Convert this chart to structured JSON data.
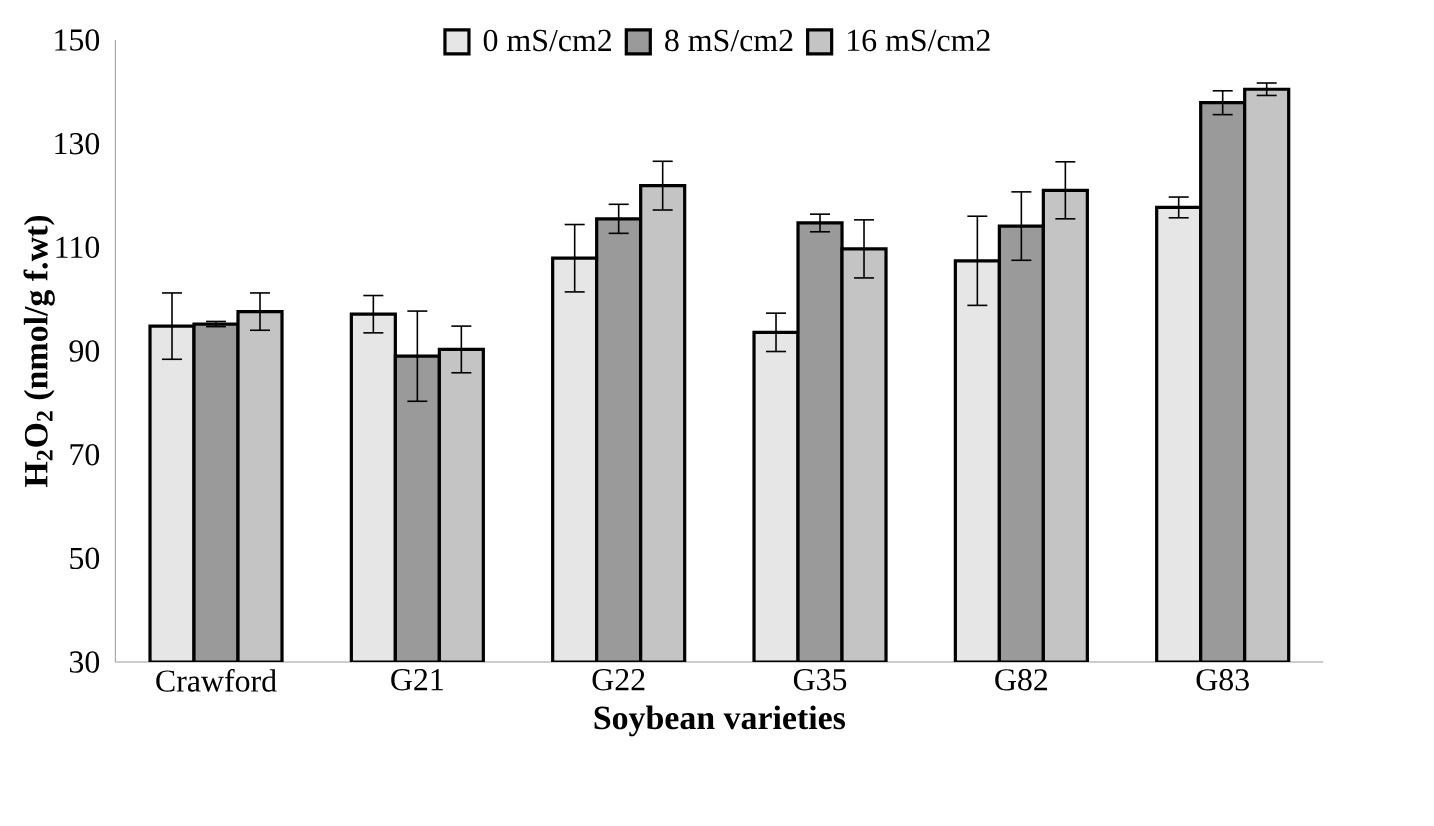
{
  "chart_data": {
    "type": "bar",
    "xlabel": "Soybean varieties",
    "ylabel": "H$_{2}$O$_{2}$ (nmol/g f.wt)",
    "categories": [
      "Crawford",
      "G21",
      "G22",
      "G35",
      "G82",
      "G83"
    ],
    "series": [
      {
        "name": "0 mS/cm2",
        "color": "#e6e6e6",
        "values": [
          94.8,
          97.1,
          107.9,
          93.6,
          107.4,
          117.7
        ],
        "errors": [
          6.4,
          3.6,
          6.5,
          3.7,
          8.6,
          2.0
        ]
      },
      {
        "name": "8 mS/cm2",
        "color": "#9a9a9a",
        "values": [
          95.2,
          89.0,
          115.5,
          114.7,
          114.1,
          137.9
        ],
        "errors": [
          0.5,
          8.7,
          2.8,
          1.7,
          6.6,
          2.3
        ]
      },
      {
        "name": "16 mS/cm2",
        "color": "#c4c4c4",
        "values": [
          97.6,
          90.3,
          121.9,
          109.7,
          121.0,
          140.5
        ],
        "errors": [
          3.6,
          4.5,
          4.7,
          5.6,
          5.5,
          1.2
        ]
      }
    ],
    "ylim": [
      30,
      150
    ],
    "yticks": [
      30,
      50,
      70,
      90,
      110,
      130,
      150
    ],
    "legend": "top",
    "grid": false
  }
}
